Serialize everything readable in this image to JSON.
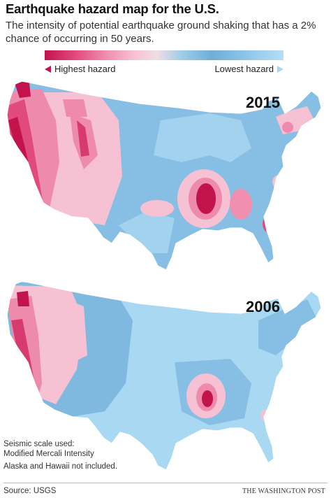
{
  "title": "Earthquake hazard map for the U.S.",
  "subtitle": "The intensity of potential earthquake ground shaking that has a 2% chance of occurring in 50 years.",
  "legend": {
    "left_label": "Highest hazard",
    "right_label": "Lowest hazard",
    "colors": {
      "highest": "#c2134c",
      "high": "#f08fb0",
      "mid": "#6faed8",
      "lowest": "#b7def5"
    }
  },
  "maps": [
    {
      "year": "2015"
    },
    {
      "year": "2006"
    }
  ],
  "notes": {
    "line1": "Seismic scale used:",
    "line2": "Modified Mercali Intensity",
    "line3": "Alaska and Hawaii not included."
  },
  "source": "Source: USGS",
  "credit": "THE WASHINGTON POST"
}
